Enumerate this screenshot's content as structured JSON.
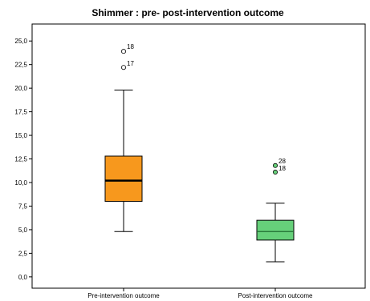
{
  "chart_data": {
    "type": "boxplot",
    "title": "Shimmer : pre- post-intervention outcome",
    "xlabel": "",
    "ylabel": "",
    "ylim": [
      -1.2,
      26.8
    ],
    "yticks": [
      0,
      2.5,
      5,
      7.5,
      10,
      12.5,
      15,
      17.5,
      20,
      22.5,
      25
    ],
    "ytick_labels": [
      "0,0",
      "2,5",
      "5,0",
      "7,5",
      "10,0",
      "12,5",
      "15,0",
      "17,5",
      "20,0",
      "22,5",
      "25,0"
    ],
    "grid": false,
    "legend": "none",
    "categories": [
      "Pre-intervention outcome",
      "Post-intervention outcome"
    ],
    "boxes": [
      {
        "category": "Pre-intervention outcome",
        "whisker_low": 4.8,
        "q1": 8.0,
        "median": 10.2,
        "q3": 12.8,
        "whisker_high": 19.8,
        "color": "#f7981d",
        "median_color": "#000000",
        "outliers": [
          {
            "value": 23.9,
            "label": "18",
            "fill": "#ffffff"
          },
          {
            "value": 22.2,
            "label": "17",
            "fill": "#ffffff"
          }
        ]
      },
      {
        "category": "Post-intervention outcome",
        "whisker_low": 1.6,
        "q1": 3.9,
        "median": 4.8,
        "q3": 6.0,
        "whisker_high": 7.8,
        "color": "#66d07a",
        "median_color": "#1f6b30",
        "outliers": [
          {
            "value": 11.8,
            "label": "28",
            "fill": "#66d07a"
          },
          {
            "value": 11.1,
            "label": "18",
            "fill": "#66d07a"
          }
        ]
      }
    ]
  }
}
